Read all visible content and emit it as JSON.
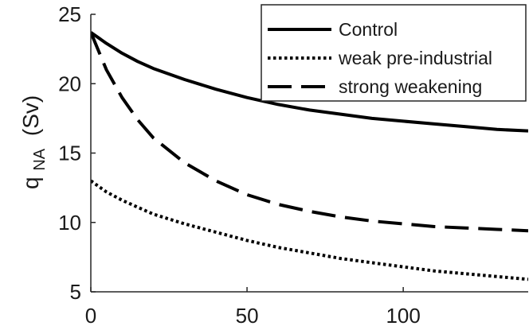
{
  "chart_data": {
    "type": "line",
    "title": "",
    "xlabel": "",
    "ylabel": "q",
    "ylabel_subscript": "NA",
    "ylabel_unit": "(Sv)",
    "xlim": [
      0,
      140
    ],
    "ylim": [
      5,
      25
    ],
    "xticks": [
      0,
      50,
      100
    ],
    "yticks": [
      5,
      10,
      15,
      20,
      25
    ],
    "grid": false,
    "legend_position": "top-right",
    "series": [
      {
        "name": "Control",
        "style": "solid",
        "color": "#000000",
        "x": [
          0,
          5,
          10,
          15,
          20,
          30,
          40,
          50,
          60,
          70,
          80,
          90,
          100,
          110,
          120,
          130,
          140
        ],
        "y": [
          23.7,
          22.9,
          22.2,
          21.6,
          21.1,
          20.3,
          19.6,
          19.0,
          18.5,
          18.1,
          17.8,
          17.5,
          17.3,
          17.1,
          16.9,
          16.7,
          16.6
        ]
      },
      {
        "name": "weak pre-industrial",
        "style": "dotted",
        "color": "#000000",
        "x": [
          0,
          5,
          10,
          15,
          20,
          30,
          40,
          50,
          60,
          70,
          80,
          90,
          100,
          110,
          120,
          130,
          140
        ],
        "y": [
          13.0,
          12.2,
          11.6,
          11.1,
          10.6,
          9.9,
          9.3,
          8.7,
          8.2,
          7.8,
          7.4,
          7.1,
          6.8,
          6.5,
          6.3,
          6.1,
          5.9
        ]
      },
      {
        "name": "strong weakening",
        "style": "dashed",
        "color": "#000000",
        "x": [
          0,
          5,
          10,
          15,
          20,
          30,
          40,
          50,
          60,
          70,
          80,
          90,
          100,
          110,
          120,
          130,
          140
        ],
        "y": [
          23.7,
          21.0,
          19.0,
          17.4,
          16.1,
          14.3,
          13.0,
          12.0,
          11.3,
          10.8,
          10.4,
          10.1,
          9.9,
          9.7,
          9.6,
          9.5,
          9.4
        ]
      }
    ]
  }
}
